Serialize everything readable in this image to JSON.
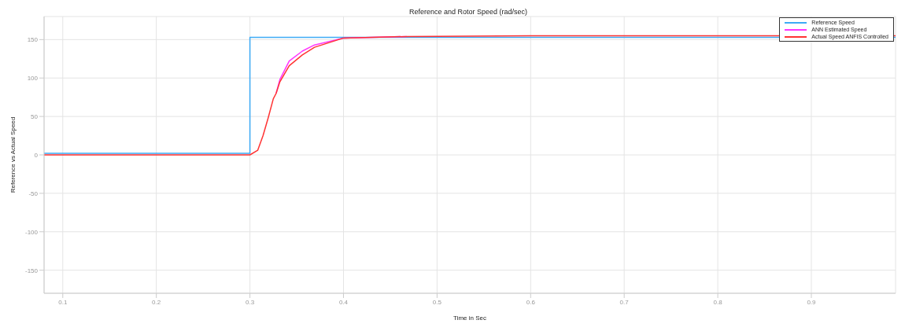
{
  "chart_data": {
    "type": "line",
    "title": "Reference and Rotor Speed   (rad/sec)",
    "xlabel": "Time in Sec",
    "ylabel": "Reference vs Actual Speed",
    "xlim": [
      0.08,
      0.99
    ],
    "xticks": [
      0.1,
      0.2,
      0.3,
      0.4,
      0.5,
      0.6,
      0.7,
      0.8,
      0.9
    ],
    "ylim": [
      -180,
      180
    ],
    "yticks": [
      -150,
      -100,
      -50,
      0,
      50,
      100,
      150
    ],
    "grid": true,
    "legend": "top right",
    "marker": "none",
    "line_style": "solid",
    "series": [
      {
        "name": "Reference Speed",
        "color": "#3daaf5",
        "x": [
          0.08,
          0.3,
          0.3,
          0.99
        ],
        "values": [
          2,
          2,
          153,
          153
        ]
      },
      {
        "name": "ANN Estimated Speed",
        "color": "#ff33ff",
        "x": [
          0.328,
          0.332,
          0.342,
          0.356,
          0.369,
          0.4,
          0.4675
        ],
        "values": [
          80,
          98,
          122,
          135,
          143,
          152,
          154
        ]
      },
      {
        "name": "Actual Speed ANFIS Controlled",
        "color": "#ff3333",
        "x": [
          0.08,
          0.3,
          0.3083,
          0.314,
          0.3195,
          0.325,
          0.328,
          0.332,
          0.342,
          0.356,
          0.369,
          0.4,
          0.4675,
          0.6,
          0.99
        ],
        "values": [
          0,
          0,
          6,
          25,
          48,
          73,
          80,
          95,
          116,
          130,
          140,
          152,
          154,
          155,
          155
        ]
      }
    ]
  }
}
